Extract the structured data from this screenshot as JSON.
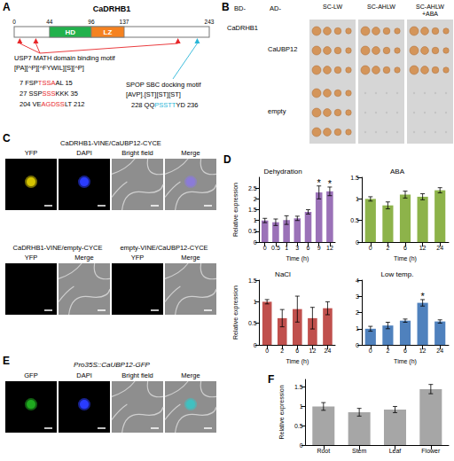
{
  "figure_letters": [
    "A",
    "B",
    "C",
    "D",
    "E",
    "F"
  ],
  "panel_a": {
    "protein": "CaDRHB1",
    "length": 243,
    "position_labels": [
      0,
      44,
      96,
      137,
      243
    ],
    "domains": [
      {
        "name": "HD",
        "start": 44,
        "end": 96,
        "color": "#22b14c"
      },
      {
        "name": "LZ",
        "start": 96,
        "end": 137,
        "color": "#f58220"
      }
    ],
    "usp7": {
      "label": "USP7 MATH domain binding motif",
      "pattern": "[PA][^P][^FYWIL][S][^P]",
      "color": "#e8272a",
      "sites": [
        {
          "start": 7,
          "end": 15,
          "pre": "FSP",
          "motif": "TSSA",
          "post": "AL"
        },
        {
          "start": 27,
          "end": 35,
          "pre": "SSP",
          "motif": "SSS",
          "post": "KKK"
        },
        {
          "start": 204,
          "end": 212,
          "pre": "VE",
          "motif": "AGDSS",
          "post": "LT"
        }
      ]
    },
    "spop": {
      "label": "SPOP SBC docking motif",
      "pattern": "[AVP].[ST][ST][ST]",
      "color": "#29b6d8",
      "sites": [
        {
          "start": 228,
          "end": 236,
          "pre": "QQ",
          "motif": "PSSTT",
          "post": "YD"
        }
      ]
    }
  },
  "panel_b": {
    "bait_prefix": "BD-",
    "prey_prefix": "AD-",
    "bait": "CaDRHB1",
    "media": [
      "SC-LW",
      "SC-AHLW",
      "SC-AHLW +ABA"
    ],
    "preys": [
      {
        "name": "CaUBP12",
        "growth": [
          true,
          true,
          true
        ]
      },
      {
        "name": "empty",
        "growth": [
          true,
          false,
          false
        ]
      }
    ]
  },
  "panel_c": {
    "rows": [
      [
        {
          "title": "CaDRHB1-VINE/CaUBP12-CYCE",
          "channels": [
            "YFP",
            "DAPI",
            "Bright field",
            "Merge"
          ]
        }
      ],
      [
        {
          "title": "CaDRHB1-VINE/empty-CYCE",
          "channels": [
            "YFP",
            "Merge"
          ]
        },
        {
          "title": "empty-VINE/CaUBP12-CYCE",
          "channels": [
            "YFP",
            "Merge"
          ]
        }
      ]
    ]
  },
  "panel_e": {
    "title": "Pro35S::CaUBP12-GFP",
    "channels": [
      "GFP",
      "DAPI",
      "Bright field",
      "Merge"
    ]
  },
  "chart_data": [
    {
      "type": "bar",
      "title": "Dehydration",
      "x_label": "Time (h)",
      "y_label": "Relative expression",
      "categories": [
        "0",
        "0.5",
        "1",
        "3",
        "6",
        "9",
        "12"
      ],
      "values": [
        1.0,
        0.92,
        1.02,
        1.1,
        1.4,
        2.3,
        2.35
      ],
      "errors": [
        0.1,
        0.15,
        0.2,
        0.1,
        0.1,
        0.3,
        0.2
      ],
      "annotations": [
        {
          "category": "9",
          "text": "*"
        },
        {
          "category": "12",
          "text": "*"
        }
      ],
      "color": "#9b72b8",
      "ylim": [
        0,
        3
      ],
      "yticks": [
        0,
        0.5,
        1,
        1.5,
        2,
        2.5
      ],
      "grid": false
    },
    {
      "type": "bar",
      "title": "ABA",
      "x_label": "Time (h)",
      "categories": [
        "0",
        "2",
        "6",
        "12",
        "24"
      ],
      "values": [
        1.0,
        0.85,
        1.1,
        1.05,
        1.2
      ],
      "errors": [
        0.05,
        0.08,
        0.08,
        0.07,
        0.06
      ],
      "color": "#8db34a",
      "ylim": [
        0,
        1.5
      ],
      "yticks": [
        0,
        0.5,
        1,
        1.5
      ],
      "grid": false
    },
    {
      "type": "bar",
      "title": "NaCl",
      "x_label": "Time (h)",
      "y_label": "Relative expression",
      "categories": [
        "0",
        "2",
        "6",
        "12",
        "24"
      ],
      "values": [
        1.0,
        0.62,
        0.83,
        0.62,
        0.85
      ],
      "errors": [
        0.05,
        0.2,
        0.3,
        0.25,
        0.15
      ],
      "color": "#c0504d",
      "ylim": [
        0,
        1.5
      ],
      "yticks": [
        0,
        0.5,
        1,
        1.5
      ],
      "grid": false
    },
    {
      "type": "bar",
      "title": "Low temp.",
      "x_label": "Time (h)",
      "categories": [
        "0",
        "2",
        "6",
        "12",
        "24"
      ],
      "values": [
        1.0,
        1.2,
        1.5,
        2.6,
        1.45
      ],
      "errors": [
        0.15,
        0.2,
        0.1,
        0.2,
        0.1
      ],
      "annotations": [
        {
          "category": "12",
          "text": "*"
        }
      ],
      "color": "#4f81bd",
      "ylim": [
        0,
        4
      ],
      "yticks": [
        0,
        1,
        2,
        3,
        4
      ],
      "grid": false
    },
    {
      "type": "bar",
      "y_label": "Relative expression",
      "categories": [
        "Root",
        "Stem",
        "Leaf",
        "Flower"
      ],
      "values": [
        1.0,
        0.85,
        0.92,
        1.45
      ],
      "errors": [
        0.1,
        0.1,
        0.08,
        0.12
      ],
      "color": "#a6a6a6",
      "ylim": [
        0,
        1.7
      ],
      "yticks": [
        0,
        0.5,
        1,
        1.5
      ],
      "grid": false
    }
  ]
}
